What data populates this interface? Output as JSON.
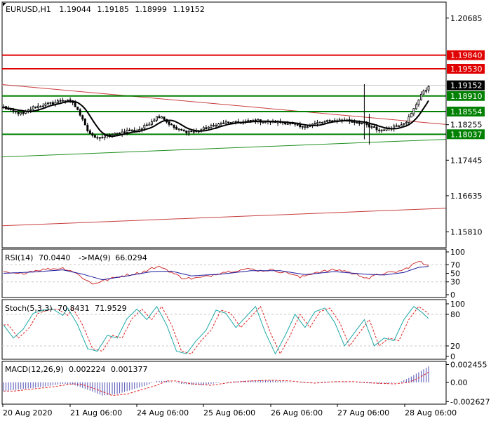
{
  "header": {
    "symbol": "EURUSD,H1",
    "open": "1.19044",
    "high": "1.19185",
    "low": "1.18999",
    "close": "1.19152"
  },
  "colors": {
    "background": "#ffffff",
    "frame": "#000000",
    "grid": "#c8c8c8",
    "candle": "#000000",
    "ma_line": "#000000",
    "resistance": "#e00000",
    "support": "#008000",
    "trend_red": "#c83c3c",
    "trend_green": "#209020",
    "rsi": "#d03030",
    "rsi_ma": "#1a1aa0",
    "stoch_main": "#20a8a8",
    "stoch_signal": "#e02020",
    "macd_hist": "#5050b4",
    "macd_signal": "#e02020",
    "current_price_label_bg": "#000000"
  },
  "chart_data": [
    {
      "type": "candlestick",
      "title": "EURUSD,H1",
      "ylim": [
        1.1545,
        1.2105
      ],
      "yticks": [
        "1.20685",
        "1.17445",
        "1.16635",
        "1.15810"
      ],
      "current_price": "1.19152",
      "levels": [
        {
          "value": "1.19840",
          "kind": "resistance"
        },
        {
          "value": "1.19530",
          "kind": "resistance"
        },
        {
          "value": "1.18910",
          "kind": "support"
        },
        {
          "value": "1.18554",
          "kind": "support"
        },
        {
          "value": "1.18255",
          "kind": "tick"
        },
        {
          "value": "1.18037",
          "kind": "support"
        }
      ],
      "trendlines": [
        {
          "color": "red",
          "from": [
            "20 Aug 2020",
            1.1917
          ],
          "to": [
            "28 Aug 06:00",
            1.1826
          ]
        },
        {
          "color": "green",
          "from": [
            "20 Aug 2020",
            1.1752
          ],
          "to": [
            "28 Aug 06:00",
            1.1792
          ]
        },
        {
          "color": "red",
          "from": [
            "20 Aug 2020",
            1.1595
          ],
          "to": [
            "28 Aug 06:00",
            1.1635
          ]
        }
      ],
      "close_anchors": [
        [
          0,
          1.1865
        ],
        [
          4,
          1.1855
        ],
        [
          8,
          1.185
        ],
        [
          12,
          1.1865
        ],
        [
          16,
          1.187
        ],
        [
          20,
          1.1875
        ],
        [
          24,
          1.1882
        ],
        [
          28,
          1.1876
        ],
        [
          32,
          1.184
        ],
        [
          34,
          1.1812
        ],
        [
          36,
          1.1798
        ],
        [
          38,
          1.1795
        ],
        [
          42,
          1.18
        ],
        [
          46,
          1.1805
        ],
        [
          50,
          1.1812
        ],
        [
          54,
          1.1812
        ],
        [
          58,
          1.1825
        ],
        [
          62,
          1.1843
        ],
        [
          64,
          1.1845
        ],
        [
          66,
          1.1832
        ],
        [
          70,
          1.1815
        ],
        [
          74,
          1.181
        ],
        [
          78,
          1.181
        ],
        [
          82,
          1.1818
        ],
        [
          86,
          1.1825
        ],
        [
          90,
          1.183
        ],
        [
          94,
          1.183
        ],
        [
          98,
          1.1832
        ],
        [
          102,
          1.1835
        ],
        [
          106,
          1.1832
        ],
        [
          110,
          1.1832
        ],
        [
          114,
          1.183
        ],
        [
          118,
          1.1825
        ],
        [
          121,
          1.1818
        ],
        [
          122,
          1.1822
        ],
        [
          126,
          1.1828
        ],
        [
          130,
          1.1832
        ],
        [
          134,
          1.1835
        ],
        [
          138,
          1.1836
        ],
        [
          142,
          1.1832
        ],
        [
          146,
          1.1828
        ],
        [
          148,
          1.182
        ],
        [
          150,
          1.1818
        ],
        [
          152,
          1.1812
        ],
        [
          154,
          1.1815
        ],
        [
          156,
          1.1818
        ],
        [
          158,
          1.1822
        ],
        [
          160,
          1.1825
        ],
        [
          163,
          1.1833
        ],
        [
          165,
          1.185
        ],
        [
          167,
          1.1872
        ],
        [
          169,
          1.1895
        ],
        [
          171,
          1.1905
        ],
        [
          172,
          1.1915
        ]
      ],
      "spike_bars": [
        {
          "index": 146,
          "high": 1.1918,
          "low": 1.1792
        },
        {
          "index": 148,
          "high": 1.185,
          "low": 1.178
        }
      ],
      "overlays": [
        "moving average (black)"
      ]
    },
    {
      "type": "line",
      "title": "RSI(14) 70.0440 ->MA(9) 66.0294",
      "ylim": [
        0,
        100
      ],
      "yticks": [
        "100",
        "70",
        "50",
        "30",
        "0"
      ],
      "levels": [
        30,
        70
      ],
      "anchors": [
        [
          0,
          52
        ],
        [
          6,
          48
        ],
        [
          12,
          56
        ],
        [
          18,
          60
        ],
        [
          24,
          62
        ],
        [
          28,
          55
        ],
        [
          32,
          40
        ],
        [
          36,
          25
        ],
        [
          40,
          32
        ],
        [
          44,
          38
        ],
        [
          48,
          44
        ],
        [
          52,
          48
        ],
        [
          56,
          52
        ],
        [
          60,
          62
        ],
        [
          64,
          65
        ],
        [
          68,
          52
        ],
        [
          72,
          40
        ],
        [
          76,
          38
        ],
        [
          80,
          40
        ],
        [
          84,
          45
        ],
        [
          88,
          52
        ],
        [
          92,
          55
        ],
        [
          96,
          58
        ],
        [
          100,
          60
        ],
        [
          104,
          56
        ],
        [
          108,
          58
        ],
        [
          112,
          54
        ],
        [
          116,
          50
        ],
        [
          120,
          40
        ],
        [
          122,
          44
        ],
        [
          126,
          52
        ],
        [
          130,
          55
        ],
        [
          134,
          58
        ],
        [
          138,
          56
        ],
        [
          142,
          48
        ],
        [
          146,
          42
        ],
        [
          148,
          38
        ],
        [
          150,
          44
        ],
        [
          154,
          50
        ],
        [
          158,
          52
        ],
        [
          162,
          58
        ],
        [
          165,
          68
        ],
        [
          168,
          78
        ],
        [
          170,
          72
        ],
        [
          172,
          70
        ]
      ],
      "ma_anchors": [
        [
          0,
          50
        ],
        [
          12,
          53
        ],
        [
          24,
          58
        ],
        [
          32,
          48
        ],
        [
          40,
          35
        ],
        [
          50,
          44
        ],
        [
          60,
          54
        ],
        [
          68,
          55
        ],
        [
          76,
          44
        ],
        [
          88,
          48
        ],
        [
          100,
          56
        ],
        [
          112,
          56
        ],
        [
          122,
          47
        ],
        [
          134,
          54
        ],
        [
          146,
          48
        ],
        [
          154,
          46
        ],
        [
          162,
          52
        ],
        [
          168,
          64
        ],
        [
          172,
          66
        ]
      ]
    },
    {
      "type": "line",
      "title": "Stoch(5,3,3) 70.8431 71.9529",
      "ylim": [
        0,
        100
      ],
      "yticks": [
        "100",
        "80",
        "20",
        "0"
      ],
      "levels": [
        20,
        80
      ],
      "anchors": [
        [
          0,
          60
        ],
        [
          4,
          35
        ],
        [
          8,
          52
        ],
        [
          12,
          82
        ],
        [
          16,
          88
        ],
        [
          20,
          90
        ],
        [
          24,
          78
        ],
        [
          26,
          92
        ],
        [
          30,
          60
        ],
        [
          34,
          15
        ],
        [
          38,
          10
        ],
        [
          42,
          40
        ],
        [
          46,
          35
        ],
        [
          50,
          72
        ],
        [
          54,
          90
        ],
        [
          58,
          70
        ],
        [
          62,
          95
        ],
        [
          66,
          60
        ],
        [
          70,
          10
        ],
        [
          74,
          5
        ],
        [
          78,
          30
        ],
        [
          82,
          50
        ],
        [
          86,
          88
        ],
        [
          90,
          82
        ],
        [
          94,
          55
        ],
        [
          98,
          75
        ],
        [
          102,
          95
        ],
        [
          106,
          45
        ],
        [
          110,
          5
        ],
        [
          114,
          40
        ],
        [
          118,
          80
        ],
        [
          122,
          55
        ],
        [
          126,
          85
        ],
        [
          130,
          92
        ],
        [
          134,
          65
        ],
        [
          138,
          20
        ],
        [
          142,
          45
        ],
        [
          146,
          70
        ],
        [
          150,
          20
        ],
        [
          154,
          35
        ],
        [
          158,
          30
        ],
        [
          162,
          70
        ],
        [
          166,
          95
        ],
        [
          169,
          85
        ],
        [
          172,
          72
        ]
      ],
      "signal_offset": 2
    },
    {
      "type": "bar",
      "title": "MACD(12,26,9) 0.002224 0.001377",
      "ylim": [
        -0.0026,
        0.0024
      ],
      "yticks": [
        "0.002455",
        "0.00",
        "-0.002627"
      ],
      "anchors": [
        [
          0,
          -0.0012
        ],
        [
          8,
          -0.0009
        ],
        [
          16,
          -0.0006
        ],
        [
          24,
          -0.0002
        ],
        [
          28,
          -0.0003
        ],
        [
          34,
          -0.001
        ],
        [
          40,
          -0.0018
        ],
        [
          46,
          -0.0016
        ],
        [
          52,
          -0.001
        ],
        [
          58,
          -0.0004
        ],
        [
          62,
          0.0002
        ],
        [
          66,
          0.0002
        ],
        [
          72,
          -0.0002
        ],
        [
          80,
          -0.0004
        ],
        [
          88,
          0.0
        ],
        [
          96,
          0.0002
        ],
        [
          104,
          0.0003
        ],
        [
          112,
          0.0002
        ],
        [
          118,
          0.0
        ],
        [
          122,
          -0.0001
        ],
        [
          130,
          0.0001
        ],
        [
          138,
          0.0001
        ],
        [
          146,
          -0.0001
        ],
        [
          154,
          -0.0002
        ],
        [
          160,
          0.0
        ],
        [
          164,
          0.0006
        ],
        [
          168,
          0.0014
        ],
        [
          172,
          0.0022
        ]
      ],
      "signal_lag": 4
    }
  ],
  "time_axis": {
    "labels": [
      "20 Aug 2020",
      "21 Aug 06:00",
      "24 Aug 06:00",
      "25 Aug 06:00",
      "26 Aug 06:00",
      "27 Aug 06:00",
      "28 Aug 06:00"
    ]
  },
  "indicators": {
    "rsi": {
      "name": "RSI(14)",
      "value": "70.0440",
      "ma_name": "->MA(9)",
      "ma_value": "66.0294"
    },
    "stoch": {
      "name": "Stoch(5,3,3)",
      "main": "70.8431",
      "signal": "71.9529"
    },
    "macd": {
      "name": "MACD(12,26,9)",
      "main": "0.002224",
      "signal": "0.001377"
    }
  }
}
